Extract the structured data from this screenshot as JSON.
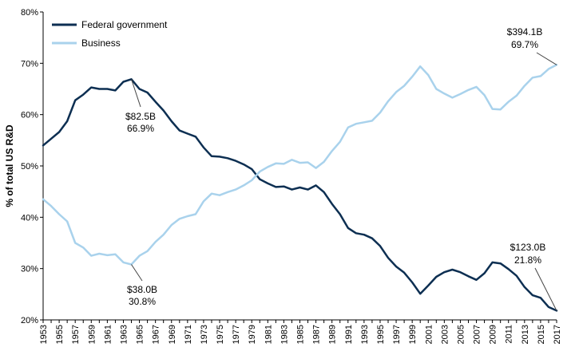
{
  "chart_data": {
    "type": "line",
    "title": "",
    "xlabel": "",
    "ylabel": "% of total US R&D",
    "ylim": [
      20,
      80
    ],
    "yticks": [
      20,
      30,
      40,
      50,
      60,
      70,
      80
    ],
    "ytick_suffix": "%",
    "x_start": 1953,
    "x_end": 2017,
    "xtick_step": 2,
    "grid": false,
    "legend_position": "top-left",
    "series": [
      {
        "name": "Federal government",
        "color": "#0d2f52",
        "values": [
          54.0,
          55.3,
          56.6,
          58.7,
          62.8,
          63.9,
          65.3,
          65.0,
          65.0,
          64.7,
          66.4,
          66.9,
          65.0,
          64.3,
          62.5,
          60.8,
          58.7,
          56.9,
          56.3,
          55.7,
          53.6,
          51.9,
          51.8,
          51.5,
          51.0,
          50.3,
          49.4,
          47.4,
          46.6,
          45.9,
          46.0,
          45.4,
          45.8,
          45.4,
          46.2,
          44.9,
          42.6,
          40.6,
          37.9,
          36.9,
          36.6,
          35.9,
          34.4,
          32.1,
          30.4,
          29.2,
          27.3,
          25.1,
          26.7,
          28.4,
          29.3,
          29.8,
          29.3,
          28.5,
          27.8,
          29.1,
          31.2,
          31.0,
          29.9,
          28.6,
          26.4,
          24.8,
          24.3,
          22.5,
          21.8
        ]
      },
      {
        "name": "Business",
        "color": "#a9d2ec",
        "values": [
          43.5,
          42.2,
          40.6,
          39.2,
          35.0,
          34.1,
          32.5,
          32.9,
          32.6,
          32.8,
          31.2,
          30.8,
          32.5,
          33.4,
          35.2,
          36.6,
          38.5,
          39.7,
          40.2,
          40.6,
          43.1,
          44.6,
          44.3,
          44.9,
          45.4,
          46.2,
          47.2,
          48.9,
          49.8,
          50.5,
          50.4,
          51.2,
          50.6,
          50.7,
          49.6,
          50.8,
          52.9,
          54.7,
          57.5,
          58.2,
          58.5,
          58.8,
          60.4,
          62.6,
          64.4,
          65.6,
          67.4,
          69.4,
          67.7,
          65.0,
          64.1,
          63.3,
          64.0,
          64.8,
          65.4,
          63.8,
          61.1,
          61.0,
          62.5,
          63.7,
          65.6,
          67.2,
          67.5,
          68.9,
          69.7
        ]
      }
    ],
    "annotations": [
      {
        "series": 0,
        "year": 1964,
        "line1": "$82.5B",
        "line2": "66.9%"
      },
      {
        "series": 1,
        "year": 1964,
        "line1": "$38.0B",
        "line2": "30.8%"
      },
      {
        "series": 1,
        "year": 2017,
        "line1": "$394.1B",
        "line2": "69.7%"
      },
      {
        "series": 0,
        "year": 2017,
        "line1": "$123.0B",
        "line2": "21.8%"
      }
    ]
  }
}
